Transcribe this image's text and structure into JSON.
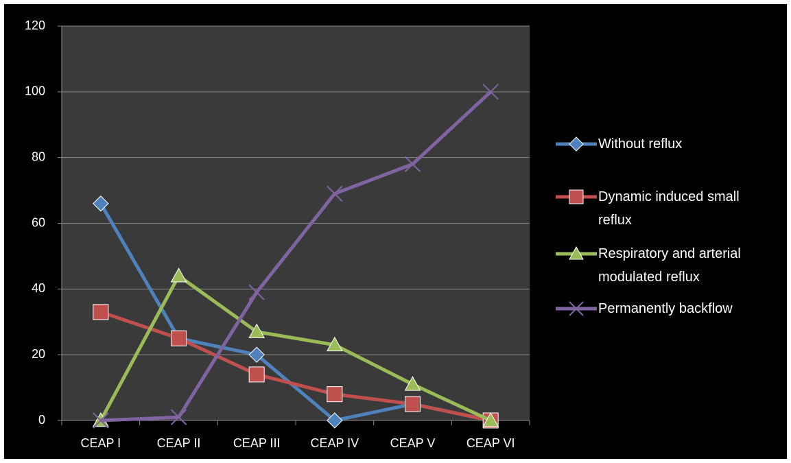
{
  "chart_data": {
    "type": "line",
    "categories": [
      "CEAP I",
      "CEAP II",
      "CEAP III",
      "CEAP IV",
      "CEAP V",
      "CEAP VI"
    ],
    "series": [
      {
        "name": "Without reflux",
        "color": "#4f81bd",
        "marker": "diamond",
        "values": [
          66,
          25,
          20,
          0,
          5,
          0
        ]
      },
      {
        "name": "Dynamic induced small reflux",
        "color": "#c0504d",
        "marker": "square",
        "values": [
          33,
          25,
          14,
          8,
          5,
          0
        ]
      },
      {
        "name": "Respiratory and arterial modulated reflux",
        "color": "#9bbb59",
        "marker": "triangle",
        "values": [
          0,
          44,
          27,
          23,
          11,
          0
        ]
      },
      {
        "name": "Permanently backflow",
        "color": "#8064a2",
        "marker": "x",
        "values": [
          0,
          1,
          39,
          69,
          78,
          100
        ]
      }
    ],
    "ylim": [
      0,
      120
    ],
    "yticks": [
      0,
      20,
      40,
      60,
      80,
      100,
      120
    ],
    "grid": true,
    "legend": "right"
  }
}
